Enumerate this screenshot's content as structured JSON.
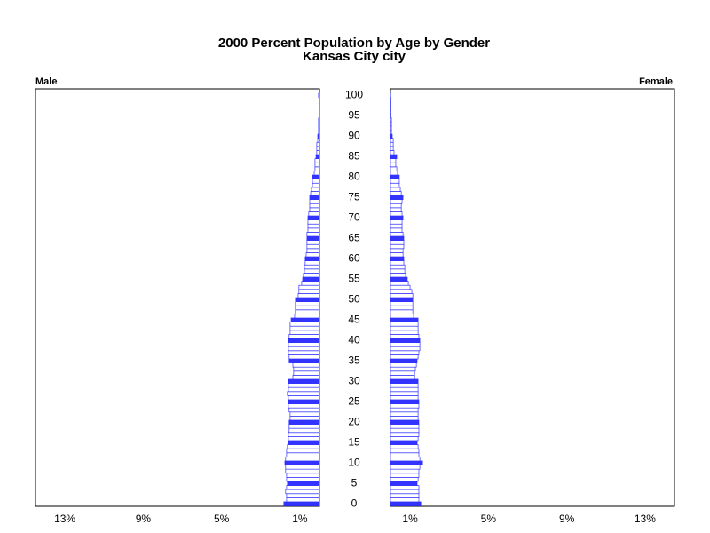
{
  "chart_data": {
    "type": "pyramid",
    "title": "2000 Percent Population by Age by Gender",
    "subtitle": "Kansas City city",
    "y": [
      0,
      1,
      2,
      3,
      4,
      5,
      6,
      7,
      8,
      9,
      10,
      11,
      12,
      13,
      14,
      15,
      16,
      17,
      18,
      19,
      20,
      21,
      22,
      23,
      24,
      25,
      26,
      27,
      28,
      29,
      30,
      31,
      32,
      33,
      34,
      35,
      36,
      37,
      38,
      39,
      40,
      41,
      42,
      43,
      44,
      45,
      46,
      47,
      48,
      49,
      50,
      51,
      52,
      53,
      54,
      55,
      56,
      57,
      58,
      59,
      60,
      61,
      62,
      63,
      64,
      65,
      66,
      67,
      68,
      69,
      70,
      71,
      72,
      73,
      74,
      75,
      76,
      77,
      78,
      79,
      80,
      81,
      82,
      83,
      84,
      85,
      86,
      87,
      88,
      89,
      90,
      91,
      92,
      93,
      94,
      95,
      96,
      97,
      98,
      99,
      100
    ],
    "ylim": [
      -0.6,
      101.6
    ],
    "yticks": [
      0,
      5,
      10,
      15,
      20,
      25,
      30,
      35,
      40,
      45,
      50,
      55,
      60,
      65,
      70,
      75,
      80,
      85,
      90,
      95,
      100
    ],
    "xlim": [
      0,
      14.5
    ],
    "xticks": [
      {
        "value": 1,
        "label": "1%"
      },
      {
        "value": 5,
        "label": "5%"
      },
      {
        "value": 9,
        "label": "9%"
      },
      {
        "value": 13,
        "label": "13%"
      }
    ],
    "series": [
      {
        "name": "Male",
        "color": "#3333ff",
        "values": [
          1.82,
          1.68,
          1.68,
          1.73,
          1.68,
          1.64,
          1.68,
          1.68,
          1.73,
          1.73,
          1.77,
          1.73,
          1.68,
          1.68,
          1.64,
          1.59,
          1.59,
          1.59,
          1.55,
          1.55,
          1.55,
          1.5,
          1.5,
          1.55,
          1.59,
          1.59,
          1.59,
          1.64,
          1.59,
          1.59,
          1.59,
          1.36,
          1.32,
          1.32,
          1.36,
          1.55,
          1.55,
          1.59,
          1.59,
          1.59,
          1.59,
          1.55,
          1.5,
          1.5,
          1.5,
          1.45,
          1.27,
          1.23,
          1.23,
          1.23,
          1.23,
          1.09,
          1.05,
          1.05,
          0.91,
          0.86,
          0.82,
          0.77,
          0.77,
          0.73,
          0.73,
          0.68,
          0.64,
          0.64,
          0.64,
          0.64,
          0.64,
          0.59,
          0.59,
          0.59,
          0.59,
          0.55,
          0.5,
          0.5,
          0.5,
          0.5,
          0.45,
          0.41,
          0.36,
          0.36,
          0.36,
          0.27,
          0.23,
          0.23,
          0.23,
          0.18,
          0.14,
          0.14,
          0.14,
          0.09,
          0.09,
          0.05,
          0.05,
          0.05,
          0.05,
          0.02,
          0.02,
          0.02,
          0.02,
          0.02,
          0.05
        ]
      },
      {
        "name": "Female",
        "color": "#3333ff",
        "values": [
          1.55,
          1.45,
          1.45,
          1.45,
          1.45,
          1.36,
          1.41,
          1.45,
          1.45,
          1.5,
          1.64,
          1.5,
          1.45,
          1.45,
          1.41,
          1.36,
          1.41,
          1.45,
          1.45,
          1.45,
          1.45,
          1.41,
          1.41,
          1.41,
          1.45,
          1.45,
          1.41,
          1.41,
          1.41,
          1.41,
          1.41,
          1.23,
          1.23,
          1.27,
          1.32,
          1.36,
          1.41,
          1.45,
          1.5,
          1.5,
          1.5,
          1.45,
          1.41,
          1.41,
          1.41,
          1.41,
          1.18,
          1.14,
          1.14,
          1.14,
          1.14,
          1.14,
          1.09,
          1.0,
          0.91,
          0.86,
          0.77,
          0.73,
          0.73,
          0.68,
          0.68,
          0.64,
          0.64,
          0.68,
          0.68,
          0.68,
          0.64,
          0.59,
          0.59,
          0.59,
          0.64,
          0.59,
          0.55,
          0.55,
          0.59,
          0.64,
          0.55,
          0.5,
          0.45,
          0.45,
          0.45,
          0.36,
          0.32,
          0.27,
          0.27,
          0.32,
          0.18,
          0.14,
          0.14,
          0.14,
          0.09,
          0.05,
          0.05,
          0.05,
          0.05,
          0.02,
          0.02,
          0.02,
          0.02,
          0.02,
          0.01
        ]
      }
    ]
  }
}
